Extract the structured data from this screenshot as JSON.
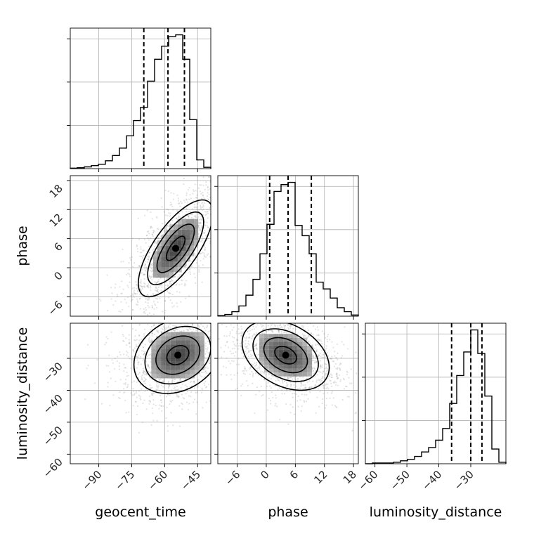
{
  "chart_data": {
    "type": "corner",
    "parameters": [
      "geocent_time",
      "phase",
      "luminosity_distance"
    ],
    "axis_labels": {
      "geocent_time": "geocent_time",
      "phase": "phase",
      "luminosity_distance": "luminosity_distance"
    },
    "ranges": {
      "geocent_time": [
        -103,
        -39
      ],
      "phase": [
        -10,
        19
      ],
      "luminosity_distance": [
        -63,
        -19
      ]
    },
    "ticks": {
      "geocent_time": [
        -90,
        -75,
        -60,
        -45
      ],
      "phase": [
        -6,
        0,
        6,
        12,
        18
      ],
      "luminosity_distance": [
        -60,
        -50,
        -40,
        -30
      ]
    },
    "tick_labels": {
      "geocent_time": [
        "−90",
        "−75",
        "−60",
        "−45"
      ],
      "phase": [
        "−6",
        "0",
        "6",
        "12",
        "18"
      ],
      "luminosity_distance": [
        "−60",
        "−50",
        "−40",
        "−30"
      ]
    },
    "quantiles": {
      "geocent_time": [
        -69.5,
        -58.5,
        -51
      ],
      "phase": [
        0.7,
        4.5,
        9.3
      ],
      "luminosity_distance": [
        -36,
        -30,
        -26.5
      ]
    },
    "histograms": {
      "geocent_time": {
        "edges": [
          -103,
          -99.8,
          -96.6,
          -93.4,
          -90.2,
          -87,
          -83.8,
          -80.6,
          -77.4,
          -74.2,
          -71,
          -67.8,
          -64.6,
          -61.4,
          -58.2,
          -55,
          -51.8,
          -48.6,
          -45.4,
          -42.2,
          -39
        ],
        "values": [
          1,
          2,
          4,
          7,
          10,
          18,
          30,
          47,
          75,
          110,
          140,
          200,
          250,
          280,
          302,
          306,
          250,
          112,
          20,
          3
        ]
      },
      "phase": {
        "edges": [
          -10,
          -8.55,
          -7.1,
          -5.65,
          -4.2,
          -2.75,
          -1.3,
          0.15,
          1.6,
          3.05,
          4.5,
          5.95,
          7.4,
          8.85,
          10.3,
          11.75,
          13.2,
          14.65,
          16.1,
          17.55,
          19
        ],
        "values": [
          1,
          3,
          8,
          18,
          37,
          65,
          110,
          162,
          220,
          232,
          236,
          160,
          142,
          110,
          60,
          48,
          32,
          15,
          8,
          2
        ]
      },
      "luminosity_distance": {
        "edges": [
          -63,
          -60.8,
          -58.6,
          -56.4,
          -54.2,
          -52,
          -49.8,
          -47.6,
          -45.4,
          -43.2,
          -41,
          -38.8,
          -36.6,
          -34.4,
          -32.2,
          -30,
          -27.8,
          -25.6,
          -23.4,
          -21.2,
          -19
        ],
        "values": [
          0,
          1,
          1,
          1,
          2,
          4,
          6,
          10,
          16,
          22,
          32,
          48,
          82,
          120,
          152,
          182,
          150,
          92,
          20,
          2
        ]
      }
    },
    "joint": [
      {
        "x": "geocent_time",
        "y": "phase",
        "center": [
          -55,
          4
        ],
        "spread": [
          8.5,
          5.0
        ],
        "rho": 0.72,
        "contour_levels": [
          0.5,
          1.0,
          1.5,
          2.0
        ]
      },
      {
        "x": "geocent_time",
        "y": "luminosity_distance",
        "center": [
          -54,
          -29
        ],
        "spread": [
          10,
          6.0
        ],
        "rho": 0.25,
        "contour_levels": [
          0.5,
          1.0,
          1.5,
          2.0
        ]
      },
      {
        "x": "phase",
        "y": "luminosity_distance",
        "center": [
          4,
          -29
        ],
        "spread": [
          4.5,
          5.5
        ],
        "rho": -0.35,
        "contour_levels": [
          0.5,
          1.0,
          1.5,
          2.0
        ]
      }
    ],
    "grid": true
  }
}
